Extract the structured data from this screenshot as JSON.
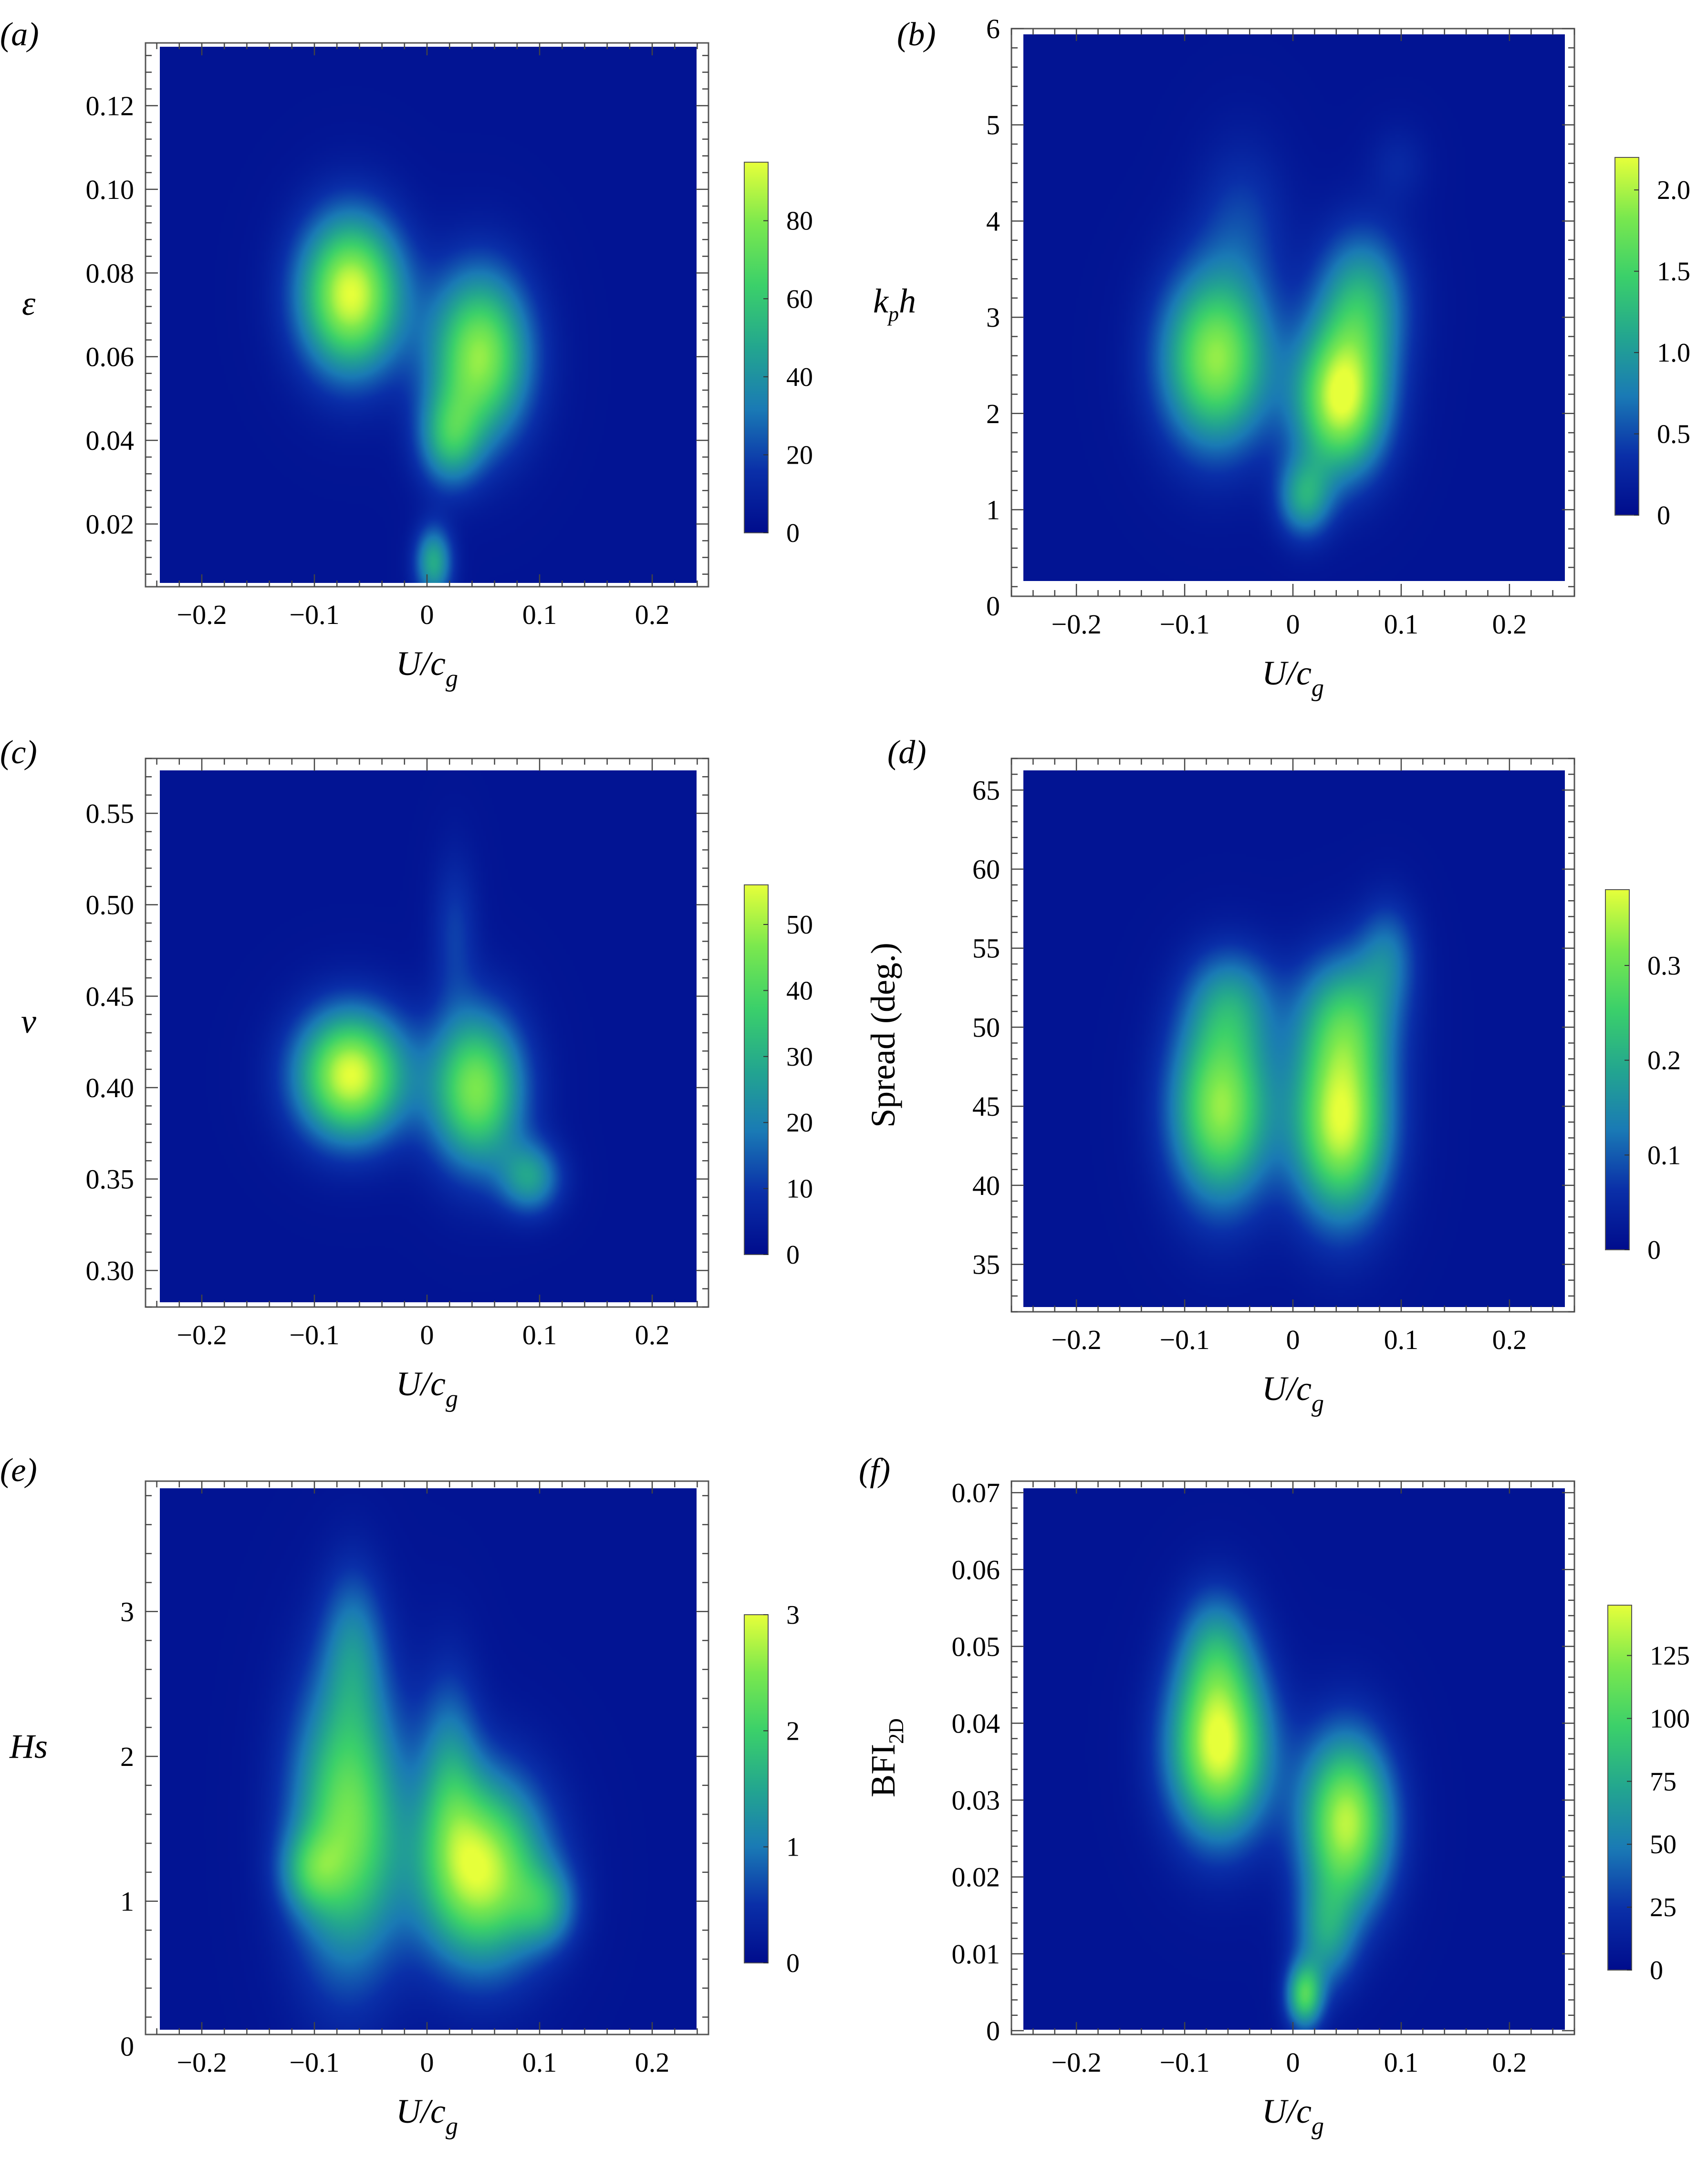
{
  "colors": {
    "background": "#0a1a9a",
    "colormap": [
      "#000c8c",
      "#0a2fa8",
      "#1a7ab5",
      "#23a68f",
      "#3bd06a",
      "#7ae84e",
      "#e6ff3a"
    ]
  },
  "chart_data": [
    {
      "type": "heatmap",
      "panel_label": "(a)",
      "xlabel": "U/c",
      "xlabel_sub": "g",
      "ylabel": "ε",
      "ylabel_sub": "",
      "xlim": [
        -0.25,
        0.25
      ],
      "ylim": [
        0.005,
        0.135
      ],
      "xticks": [
        -0.2,
        -0.1,
        0,
        0.1,
        0.2
      ],
      "xtick_labels": [
        "−0.2",
        "−0.1",
        "0",
        "0.1",
        "0.2"
      ],
      "yticks": [
        0.02,
        0.04,
        0.06,
        0.08,
        0.1,
        0.12
      ],
      "ytick_labels": [
        "0.02",
        "0.04",
        "0.06",
        "0.08",
        "0.10",
        "0.12"
      ],
      "colorbar": {
        "min": 0,
        "max": 95,
        "ticks": [
          0,
          20,
          40,
          60,
          80
        ],
        "tick_labels": [
          "0",
          "20",
          "40",
          "60",
          "80"
        ]
      },
      "blobs": [
        {
          "x": -0.072,
          "y": 0.075,
          "sx": 0.033,
          "sy": 0.013,
          "value": 95
        },
        {
          "x": 0.048,
          "y": 0.06,
          "sx": 0.032,
          "sy": 0.014,
          "value": 82
        },
        {
          "x": 0.02,
          "y": 0.04,
          "sx": 0.02,
          "sy": 0.008,
          "value": 45
        },
        {
          "x": 0.005,
          "y": 0.01,
          "sx": 0.012,
          "sy": 0.006,
          "value": 48
        }
      ]
    },
    {
      "type": "heatmap",
      "panel_label": "(b)",
      "xlabel": "U/c",
      "xlabel_sub": "g",
      "ylabel": "k",
      "ylabel_sub": "p",
      "ylabel_tail": "h",
      "xlim": [
        -0.26,
        0.26
      ],
      "ylim": [
        0.1,
        6
      ],
      "xticks": [
        -0.2,
        -0.1,
        0,
        0.1,
        0.2
      ],
      "xtick_labels": [
        "−0.2",
        "−0.1",
        "0",
        "0.1",
        "0.2"
      ],
      "yticks": [
        0,
        1,
        2,
        3,
        4,
        5,
        6
      ],
      "ytick_labels": [
        "0",
        "1",
        "2",
        "3",
        "4",
        "5",
        "6"
      ],
      "colorbar": {
        "min": 0,
        "max": 2.2,
        "ticks": [
          0,
          0.5,
          1.0,
          1.5,
          2.0
        ],
        "tick_labels": [
          "0",
          "0.5",
          "1.0",
          "1.5",
          "2.0"
        ]
      },
      "blobs": [
        {
          "x": -0.075,
          "y": 2.5,
          "sx": 0.036,
          "sy": 0.65,
          "value": 1.9
        },
        {
          "x": 0.045,
          "y": 2.05,
          "sx": 0.03,
          "sy": 0.55,
          "value": 2.15
        },
        {
          "x": 0.065,
          "y": 3.1,
          "sx": 0.03,
          "sy": 0.55,
          "value": 1.1
        },
        {
          "x": 0.01,
          "y": 1.0,
          "sx": 0.018,
          "sy": 0.3,
          "value": 1.0
        },
        {
          "x": -0.05,
          "y": 4.0,
          "sx": 0.03,
          "sy": 0.6,
          "value": 0.35
        },
        {
          "x": 0.1,
          "y": 4.6,
          "sx": 0.02,
          "sy": 0.3,
          "value": 0.2
        }
      ]
    },
    {
      "type": "heatmap",
      "panel_label": "(c)",
      "xlabel": "U/c",
      "xlabel_sub": "g",
      "ylabel": "ν",
      "ylabel_sub": "",
      "xlim": [
        -0.25,
        0.25
      ],
      "ylim": [
        0.28,
        0.58
      ],
      "xticks": [
        -0.2,
        -0.1,
        0,
        0.1,
        0.2
      ],
      "xtick_labels": [
        "−0.2",
        "−0.1",
        "0",
        "0.1",
        "0.2"
      ],
      "yticks": [
        0.3,
        0.35,
        0.4,
        0.45,
        0.5,
        0.55
      ],
      "ytick_labels": [
        "0.30",
        "0.35",
        "0.40",
        "0.45",
        "0.50",
        "0.55"
      ],
      "colorbar": {
        "min": 0,
        "max": 56,
        "ticks": [
          0,
          10,
          20,
          30,
          40,
          50
        ],
        "tick_labels": [
          "0",
          "10",
          "20",
          "30",
          "40",
          "50"
        ]
      },
      "blobs": [
        {
          "x": -0.072,
          "y": 0.408,
          "sx": 0.035,
          "sy": 0.025,
          "value": 56
        },
        {
          "x": 0.045,
          "y": 0.4,
          "sx": 0.03,
          "sy": 0.03,
          "value": 46
        },
        {
          "x": 0.095,
          "y": 0.35,
          "sx": 0.02,
          "sy": 0.014,
          "value": 24
        },
        {
          "x": 0.025,
          "y": 0.49,
          "sx": 0.015,
          "sy": 0.03,
          "value": 9
        }
      ]
    },
    {
      "type": "heatmap",
      "panel_label": "(d)",
      "xlabel": "U/c",
      "xlabel_sub": "g",
      "ylabel": "Spread (deg.)",
      "ylabel_sub": "",
      "ylabel_roman": true,
      "xlim": [
        -0.26,
        0.26
      ],
      "ylim": [
        32,
        67
      ],
      "xticks": [
        -0.2,
        -0.1,
        0,
        0.1,
        0.2
      ],
      "xtick_labels": [
        "−0.2",
        "−0.1",
        "0",
        "0.1",
        "0.2"
      ],
      "yticks": [
        35,
        40,
        45,
        50,
        55,
        60,
        65
      ],
      "ytick_labels": [
        "35",
        "40",
        "45",
        "50",
        "55",
        "60",
        "65"
      ],
      "colorbar": {
        "min": 0,
        "max": 0.38,
        "ticks": [
          0,
          0.1,
          0.2,
          0.3
        ],
        "tick_labels": [
          "0",
          "0.1",
          "0.2",
          "0.3"
        ]
      },
      "blobs": [
        {
          "x": -0.07,
          "y": 45,
          "sx": 0.033,
          "sy": 4.2,
          "value": 0.33
        },
        {
          "x": 0.045,
          "y": 44,
          "sx": 0.032,
          "sy": 4.2,
          "value": 0.37
        },
        {
          "x": 0.05,
          "y": 51,
          "sx": 0.033,
          "sy": 3.0,
          "value": 0.18
        },
        {
          "x": 0.09,
          "y": 55,
          "sx": 0.02,
          "sy": 2.5,
          "value": 0.1
        },
        {
          "x": -0.06,
          "y": 52,
          "sx": 0.03,
          "sy": 2.5,
          "value": 0.12
        }
      ]
    },
    {
      "type": "heatmap",
      "panel_label": "(e)",
      "xlabel": "U/c",
      "xlabel_sub": "g",
      "ylabel": "Hs",
      "ylabel_sub": "",
      "xlim": [
        -0.25,
        0.25
      ],
      "ylim": [
        0.08,
        3.9
      ],
      "xticks": [
        -0.2,
        -0.1,
        0,
        0.1,
        0.2
      ],
      "xtick_labels": [
        "−0.2",
        "−0.1",
        "0",
        "0.1",
        "0.2"
      ],
      "yticks": [
        0,
        1,
        2,
        3
      ],
      "ytick_labels": [
        "0",
        "1",
        "2",
        "3"
      ],
      "colorbar": {
        "min": 0,
        "max": 3,
        "ticks": [
          0,
          1,
          2,
          3
        ],
        "tick_labels": [
          "0",
          "1",
          "2",
          "3"
        ]
      },
      "blobs": [
        {
          "x": -0.075,
          "y": 1.55,
          "sx": 0.035,
          "sy": 0.7,
          "value": 2.4
        },
        {
          "x": 0.05,
          "y": 1.2,
          "sx": 0.04,
          "sy": 0.45,
          "value": 2.9
        },
        {
          "x": 0.02,
          "y": 1.9,
          "sx": 0.02,
          "sy": 0.5,
          "value": 1.0
        },
        {
          "x": -0.07,
          "y": 2.8,
          "sx": 0.02,
          "sy": 0.4,
          "value": 0.8
        },
        {
          "x": 0.11,
          "y": 0.95,
          "sx": 0.02,
          "sy": 0.2,
          "value": 1.0
        },
        {
          "x": -0.11,
          "y": 1.2,
          "sx": 0.02,
          "sy": 0.2,
          "value": 1.0
        }
      ]
    },
    {
      "type": "heatmap",
      "panel_label": "(f)",
      "xlabel": "U/c",
      "xlabel_sub": "g",
      "ylabel": "BFI",
      "ylabel_sub": "2D",
      "ylabel_roman": true,
      "xlim": [
        -0.26,
        0.26
      ],
      "ylim": [
        -0.0005,
        0.0715
      ],
      "xticks": [
        -0.2,
        -0.1,
        0,
        0.1,
        0.2
      ],
      "xtick_labels": [
        "−0.2",
        "−0.1",
        "0",
        "0.1",
        "0.2"
      ],
      "yticks": [
        0,
        0.01,
        0.02,
        0.03,
        0.04,
        0.05,
        0.06,
        0.07
      ],
      "ytick_labels": [
        "0",
        "0.01",
        "0.02",
        "0.03",
        "0.04",
        "0.05",
        "0.06",
        "0.07"
      ],
      "colorbar": {
        "min": 0,
        "max": 145,
        "ticks": [
          0,
          25,
          50,
          75,
          100,
          125
        ],
        "tick_labels": [
          "0",
          "25",
          "50",
          "75",
          "100",
          "125"
        ]
      },
      "blobs": [
        {
          "x": -0.072,
          "y": 0.037,
          "sx": 0.033,
          "sy": 0.008,
          "value": 145
        },
        {
          "x": 0.05,
          "y": 0.027,
          "sx": 0.03,
          "sy": 0.008,
          "value": 135
        },
        {
          "x": -0.075,
          "y": 0.05,
          "sx": 0.025,
          "sy": 0.006,
          "value": 50
        },
        {
          "x": 0.01,
          "y": 0.004,
          "sx": 0.012,
          "sy": 0.003,
          "value": 95
        },
        {
          "x": 0.03,
          "y": 0.012,
          "sx": 0.02,
          "sy": 0.005,
          "value": 55
        }
      ]
    }
  ]
}
